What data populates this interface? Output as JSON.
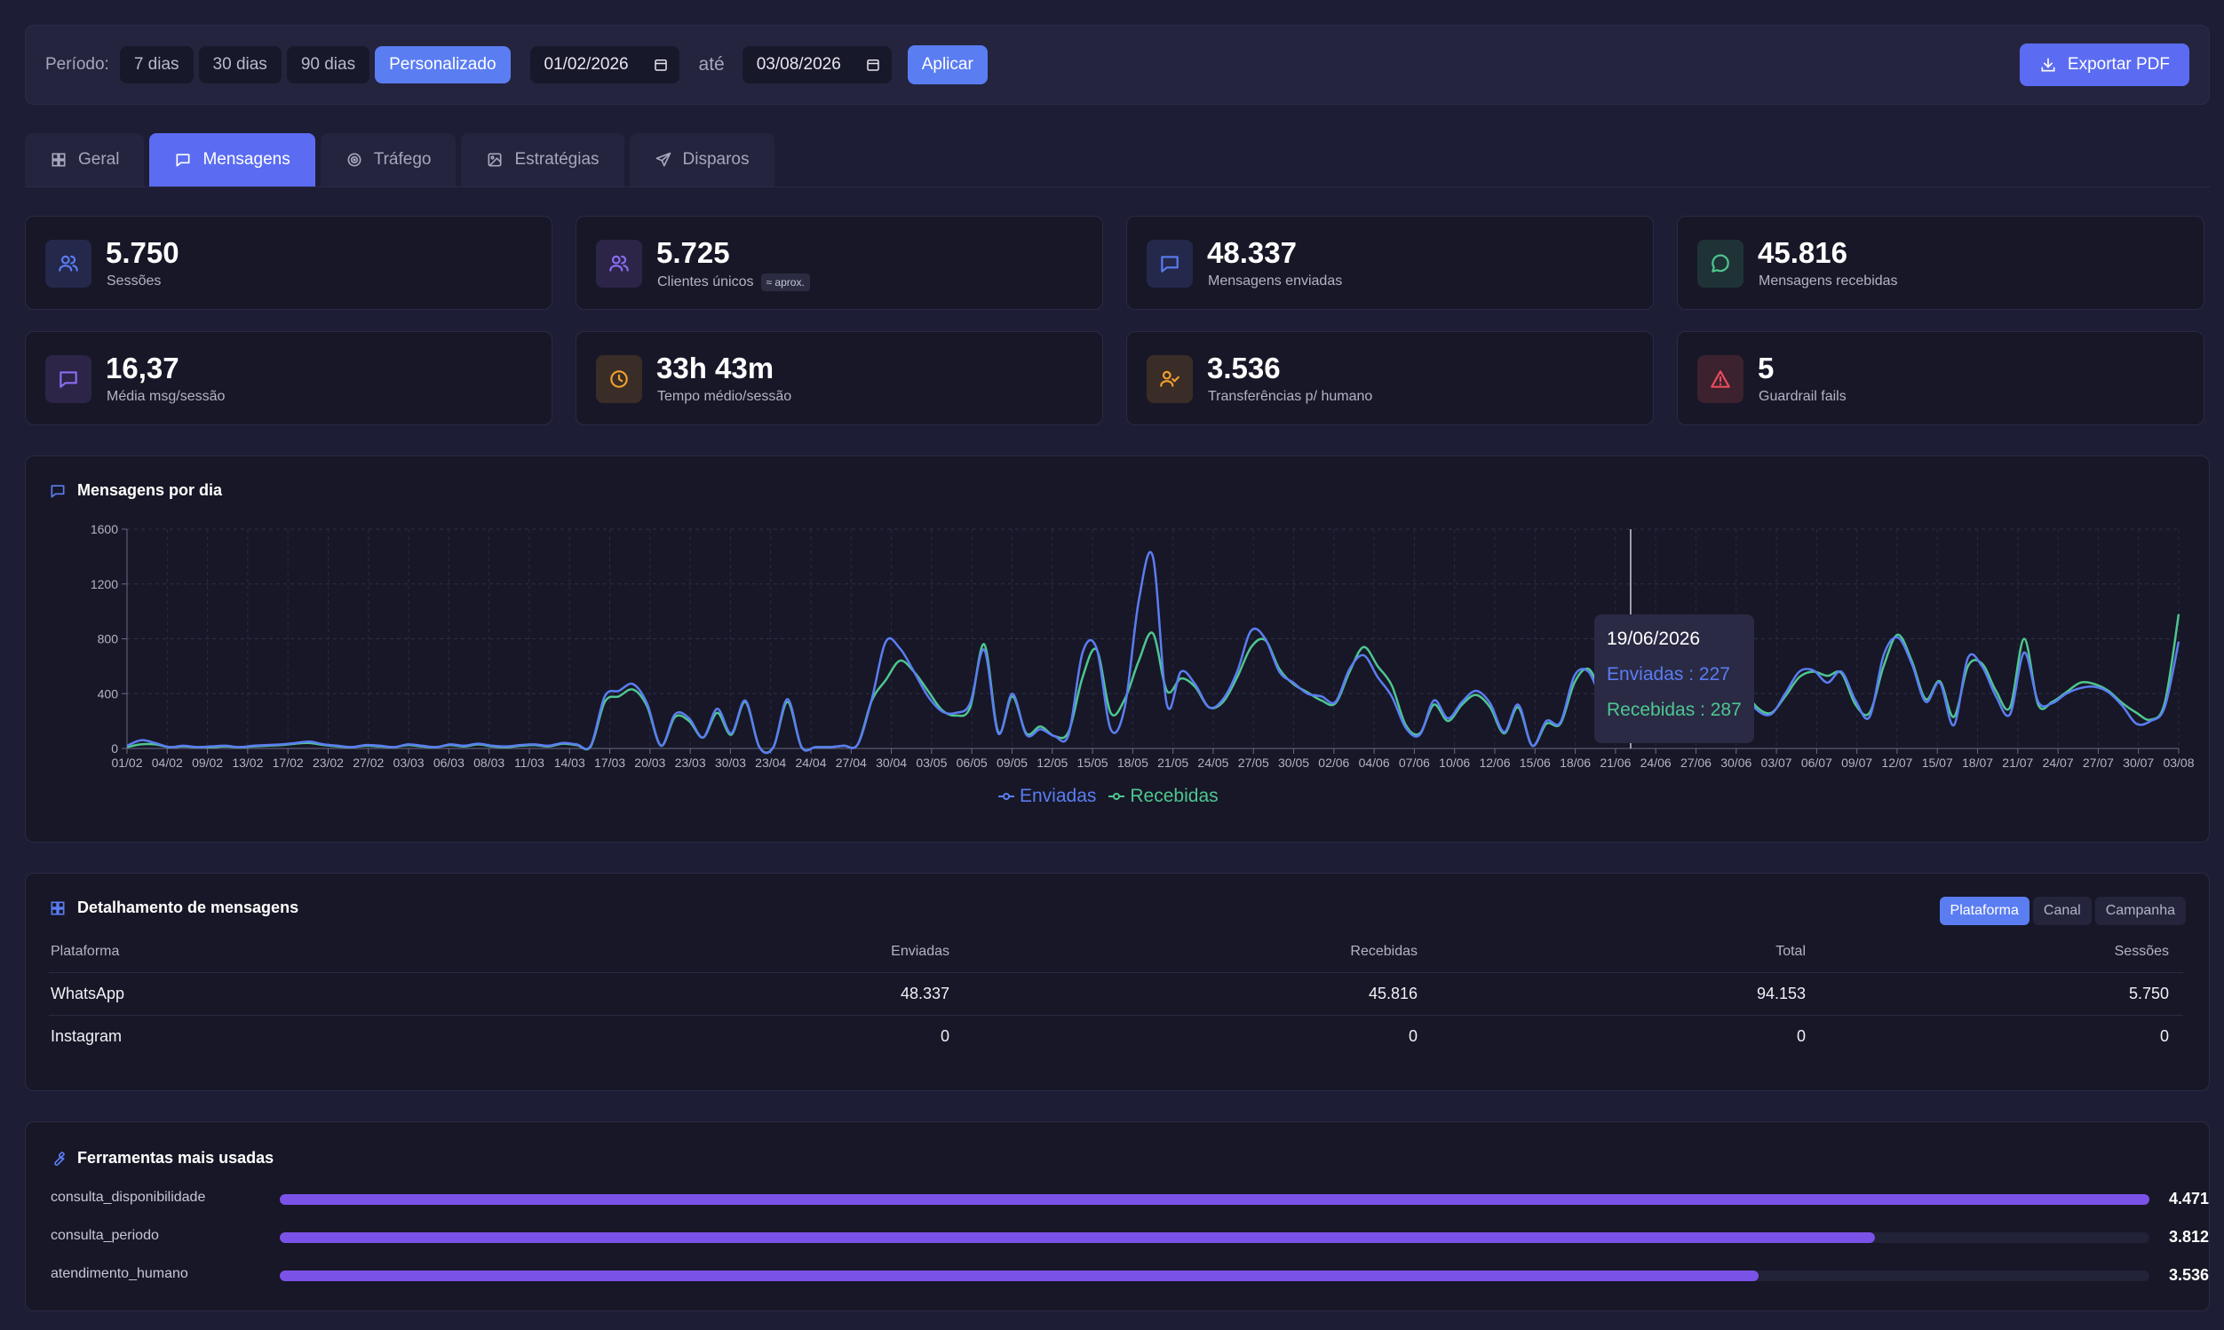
{
  "filter": {
    "label": "Período:",
    "presets": [
      "7 dias",
      "30 dias",
      "90 dias",
      "Personalizado"
    ],
    "active_preset": "Personalizado",
    "date_from": "01/02/2026",
    "separator": "até",
    "date_to": "03/08/2026",
    "apply_label": "Aplicar",
    "export_label": "Exportar PDF"
  },
  "tabs": [
    {
      "label": "Geral",
      "icon": "grid-icon"
    },
    {
      "label": "Mensagens",
      "icon": "message-icon",
      "active": true
    },
    {
      "label": "Tráfego",
      "icon": "target-icon"
    },
    {
      "label": "Estratégias",
      "icon": "image-icon"
    },
    {
      "label": "Disparos",
      "icon": "send-icon"
    }
  ],
  "kpis": [
    {
      "value": "5.750",
      "caption": "Sessões",
      "icon": "users-icon",
      "color": "#5b7df2"
    },
    {
      "value": "5.725",
      "caption": "Clientes únicos",
      "badge": "≈ aprox.",
      "icon": "users-icon",
      "color": "#8b6cf2"
    },
    {
      "value": "48.337",
      "caption": "Mensagens enviadas",
      "icon": "message-icon",
      "color": "#5b7df2"
    },
    {
      "value": "45.816",
      "caption": "Mensagens recebidas",
      "icon": "message-circle-icon",
      "color": "#4ec68f"
    },
    {
      "value": "16,37",
      "caption": "Média msg/sessão",
      "icon": "message-icon",
      "color": "#8b6cf2"
    },
    {
      "value": "33h 43m",
      "caption": "Tempo médio/sessão",
      "icon": "clock-icon",
      "color": "#f0a030"
    },
    {
      "value": "3.536",
      "caption": "Transferências p/ humano",
      "icon": "user-check-icon",
      "color": "#f0a030"
    },
    {
      "value": "5",
      "caption": "Guardrail fails",
      "icon": "alert-triangle-icon",
      "color": "#e84c5c"
    }
  ],
  "chart_panel": {
    "title": "Mensagens por dia"
  },
  "chart_data": {
    "type": "line",
    "title": "Mensagens por dia",
    "ylim": [
      0,
      1600
    ],
    "yticks": [
      0,
      400,
      800,
      1200,
      1600
    ],
    "x_tick_labels": [
      "01/02",
      "04/02",
      "09/02",
      "13/02",
      "17/02",
      "23/02",
      "27/02",
      "03/03",
      "06/03",
      "08/03",
      "11/03",
      "14/03",
      "17/03",
      "20/03",
      "23/03",
      "30/03",
      "23/04",
      "24/04",
      "27/04",
      "30/04",
      "03/05",
      "06/05",
      "09/05",
      "12/05",
      "15/05",
      "18/05",
      "21/05",
      "24/05",
      "27/05",
      "30/05",
      "02/06",
      "04/06",
      "07/06",
      "10/06",
      "12/06",
      "15/06",
      "18/06",
      "21/06",
      "24/06",
      "27/06",
      "30/06",
      "03/07",
      "06/07",
      "09/07",
      "12/07",
      "15/07",
      "18/07",
      "21/07",
      "24/07",
      "27/07",
      "30/07",
      "03/08"
    ],
    "grid": true,
    "legend_position": "bottom",
    "series": [
      {
        "name": "Enviadas",
        "color": "#5b7df2",
        "values": [
          20,
          60,
          40,
          10,
          20,
          10,
          15,
          20,
          10,
          20,
          25,
          30,
          40,
          50,
          30,
          20,
          10,
          25,
          20,
          10,
          30,
          20,
          10,
          30,
          20,
          35,
          20,
          15,
          25,
          30,
          20,
          40,
          30,
          20,
          380,
          420,
          470,
          330,
          20,
          250,
          220,
          80,
          290,
          110,
          350,
          10,
          10,
          360,
          10,
          10,
          10,
          20,
          30,
          360,
          780,
          730,
          560,
          380,
          270,
          260,
          330,
          720,
          110,
          400,
          100,
          140,
          90,
          100,
          700,
          730,
          140,
          300,
          1080,
          1400,
          320,
          560,
          470,
          300,
          360,
          560,
          860,
          800,
          560,
          480,
          400,
          380,
          340,
          580,
          680,
          520,
          380,
          150,
          100,
          350,
          220,
          340,
          420,
          330,
          120,
          320,
          20,
          200,
          190,
          530,
          560,
          350,
          330,
          227,
          300,
          340,
          290,
          600,
          170,
          400,
          580,
          420,
          280,
          250,
          400,
          560,
          570,
          480,
          560,
          350,
          230,
          680,
          810,
          620,
          340,
          480,
          170,
          660,
          600,
          380,
          250,
          700,
          340,
          330,
          400,
          440,
          450,
          410,
          310,
          180,
          200,
          300,
          780
        ]
      },
      {
        "name": "Recebidas",
        "color": "#4ec68f",
        "values": [
          10,
          30,
          30,
          10,
          15,
          10,
          10,
          15,
          10,
          15,
          20,
          25,
          35,
          40,
          25,
          15,
          10,
          20,
          15,
          10,
          25,
          15,
          10,
          25,
          15,
          30,
          15,
          10,
          20,
          25,
          15,
          35,
          25,
          15,
          340,
          380,
          430,
          310,
          20,
          230,
          200,
          80,
          260,
          100,
          340,
          10,
          10,
          340,
          10,
          10,
          10,
          20,
          30,
          350,
          500,
          640,
          560,
          420,
          280,
          240,
          300,
          760,
          120,
          380,
          110,
          160,
          90,
          120,
          520,
          720,
          260,
          360,
          640,
          840,
          420,
          510,
          450,
          300,
          340,
          520,
          740,
          790,
          580,
          470,
          410,
          350,
          330,
          560,
          740,
          600,
          460,
          170,
          110,
          320,
          200,
          320,
          390,
          300,
          110,
          300,
          20,
          180,
          180,
          480,
          580,
          400,
          330,
          287,
          330,
          340,
          290,
          580,
          190,
          420,
          550,
          440,
          300,
          260,
          380,
          520,
          560,
          530,
          550,
          320,
          260,
          600,
          830,
          640,
          360,
          490,
          230,
          600,
          620,
          420,
          300,
          800,
          320,
          340,
          410,
          480,
          470,
          420,
          330,
          260,
          210,
          330,
          980
        ]
      }
    ],
    "tooltip": {
      "date": "19/06/2026",
      "enviadas": "Enviadas : 227",
      "recebidas": "Recebidas : 287"
    }
  },
  "detail": {
    "title": "Detalhamento de mensagens",
    "segments": [
      "Plataforma",
      "Canal",
      "Campanha"
    ],
    "active_segment": "Plataforma",
    "columns": [
      "Plataforma",
      "Enviadas",
      "Recebidas",
      "Total",
      "Sessões"
    ],
    "rows": [
      [
        "WhatsApp",
        "48.337",
        "45.816",
        "94.153",
        "5.750"
      ],
      [
        "Instagram",
        "0",
        "0",
        "0",
        "0"
      ]
    ]
  },
  "tools": {
    "title": "Ferramentas mais usadas",
    "items": [
      {
        "name": "consulta_disponibilidade",
        "value": "4.471",
        "fraction": 1.0
      },
      {
        "name": "consulta_periodo",
        "value": "3.812",
        "fraction": 0.853
      },
      {
        "name": "atendimento_humano",
        "value": "3.536",
        "fraction": 0.791
      }
    ]
  }
}
